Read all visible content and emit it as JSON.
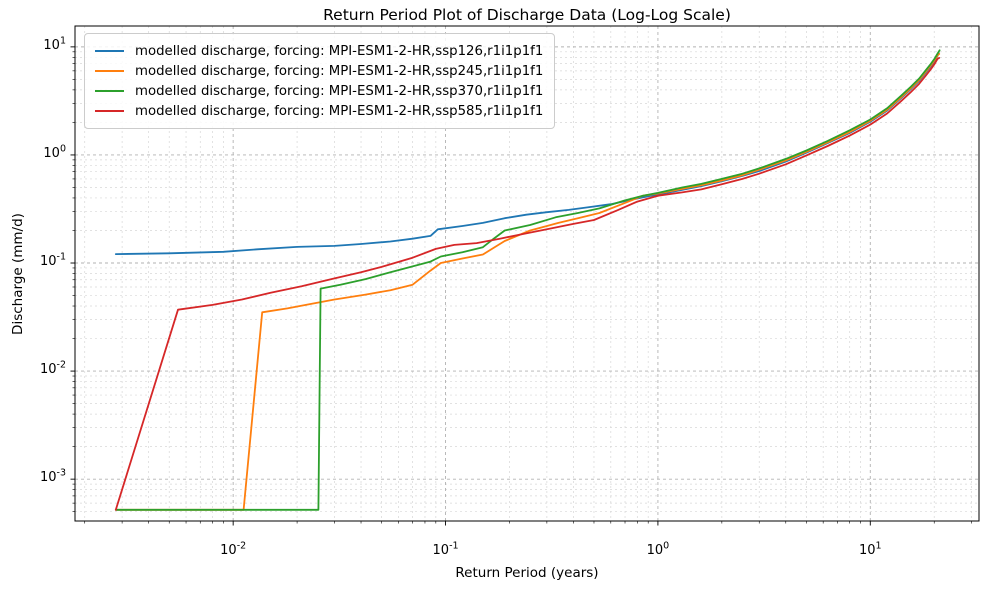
{
  "figure": {
    "title": "Return Period Plot of Discharge Data (Log-Log Scale)",
    "xlabel": "Return Period (years)",
    "ylabel": "Discharge (mm/d)"
  },
  "chart_data": {
    "type": "line",
    "title": "Return Period Plot of Discharge Data (Log-Log Scale)",
    "xlabel": "Return Period (years)",
    "ylabel": "Discharge (mm/d)",
    "x_scale": "log",
    "y_scale": "log",
    "xlim": [
      0.0018,
      32.5
    ],
    "ylim": [
      0.00041,
      15.6
    ],
    "x_tick_exponents": [
      -2,
      -1,
      0,
      1
    ],
    "y_tick_exponents": [
      1,
      0,
      -1,
      -2,
      -3
    ],
    "grid": {
      "major": true,
      "minor": true,
      "linestyle": "dashed"
    },
    "legend_position": "upper left",
    "series": [
      {
        "name": "modelled discharge, forcing: MPI-ESM1-2-HR,ssp126,r1i1p1f1",
        "color": "#1f77b4",
        "points": [
          [
            0.0028,
            0.121
          ],
          [
            0.005,
            0.123
          ],
          [
            0.009,
            0.127
          ],
          [
            0.013,
            0.134
          ],
          [
            0.02,
            0.141
          ],
          [
            0.03,
            0.144
          ],
          [
            0.04,
            0.15
          ],
          [
            0.055,
            0.158
          ],
          [
            0.07,
            0.168
          ],
          [
            0.085,
            0.178
          ],
          [
            0.092,
            0.205
          ],
          [
            0.12,
            0.22
          ],
          [
            0.15,
            0.235
          ],
          [
            0.19,
            0.26
          ],
          [
            0.24,
            0.28
          ],
          [
            0.3,
            0.295
          ],
          [
            0.38,
            0.31
          ],
          [
            0.48,
            0.33
          ],
          [
            0.6,
            0.35
          ],
          [
            0.75,
            0.385
          ],
          [
            0.9,
            0.415
          ],
          [
            1.0,
            0.43
          ],
          [
            1.3,
            0.475
          ],
          [
            1.6,
            0.515
          ],
          [
            2.0,
            0.57
          ],
          [
            2.5,
            0.64
          ],
          [
            3.0,
            0.71
          ],
          [
            4.0,
            0.87
          ],
          [
            5.0,
            1.05
          ],
          [
            6.3,
            1.29
          ],
          [
            8.0,
            1.6
          ],
          [
            10,
            2.03
          ],
          [
            12,
            2.57
          ],
          [
            14,
            3.37
          ],
          [
            15.5,
            4.06
          ],
          [
            17,
            4.85
          ],
          [
            18.2,
            5.74
          ],
          [
            19.3,
            6.63
          ],
          [
            20.1,
            7.43
          ],
          [
            20.7,
            8.22
          ],
          [
            21.0,
            8.8
          ]
        ]
      },
      {
        "name": "modelled discharge, forcing: MPI-ESM1-2-HR,ssp245,r1i1p1f1",
        "color": "#ff7f0e",
        "points": [
          [
            0.0028,
            0.00052
          ],
          [
            0.0112,
            0.00052
          ],
          [
            0.0137,
            0.035
          ],
          [
            0.018,
            0.038
          ],
          [
            0.022,
            0.041
          ],
          [
            0.03,
            0.046
          ],
          [
            0.042,
            0.051
          ],
          [
            0.055,
            0.056
          ],
          [
            0.07,
            0.063
          ],
          [
            0.085,
            0.085
          ],
          [
            0.095,
            0.1
          ],
          [
            0.12,
            0.11
          ],
          [
            0.15,
            0.12
          ],
          [
            0.19,
            0.16
          ],
          [
            0.25,
            0.2
          ],
          [
            0.3,
            0.22
          ],
          [
            0.34,
            0.235
          ],
          [
            0.42,
            0.26
          ],
          [
            0.53,
            0.29
          ],
          [
            0.7,
            0.36
          ],
          [
            0.85,
            0.42
          ],
          [
            1.0,
            0.44
          ],
          [
            1.3,
            0.485
          ],
          [
            1.6,
            0.525
          ],
          [
            2.0,
            0.58
          ],
          [
            2.5,
            0.65
          ],
          [
            3.0,
            0.73
          ],
          [
            4.0,
            0.89
          ],
          [
            5.0,
            1.07
          ],
          [
            6.3,
            1.31
          ],
          [
            8.0,
            1.63
          ],
          [
            10,
            2.07
          ],
          [
            12,
            2.62
          ],
          [
            14,
            3.43
          ],
          [
            15.5,
            4.14
          ],
          [
            17,
            4.95
          ],
          [
            18.2,
            5.86
          ],
          [
            19.3,
            6.77
          ],
          [
            20.1,
            7.58
          ],
          [
            20.7,
            8.3
          ],
          [
            21.1,
            8.6
          ]
        ]
      },
      {
        "name": "modelled discharge, forcing: MPI-ESM1-2-HR,ssp370,r1i1p1f1",
        "color": "#2ca02c",
        "points": [
          [
            0.0028,
            0.00052
          ],
          [
            0.0252,
            0.00052
          ],
          [
            0.0258,
            0.058
          ],
          [
            0.032,
            0.063
          ],
          [
            0.042,
            0.071
          ],
          [
            0.055,
            0.082
          ],
          [
            0.07,
            0.093
          ],
          [
            0.085,
            0.103
          ],
          [
            0.095,
            0.115
          ],
          [
            0.12,
            0.126
          ],
          [
            0.15,
            0.14
          ],
          [
            0.17,
            0.17
          ],
          [
            0.19,
            0.2
          ],
          [
            0.25,
            0.225
          ],
          [
            0.33,
            0.265
          ],
          [
            0.42,
            0.29
          ],
          [
            0.53,
            0.32
          ],
          [
            0.7,
            0.38
          ],
          [
            0.85,
            0.42
          ],
          [
            1.0,
            0.445
          ],
          [
            1.3,
            0.5
          ],
          [
            1.6,
            0.54
          ],
          [
            2.0,
            0.6
          ],
          [
            2.5,
            0.67
          ],
          [
            3.0,
            0.75
          ],
          [
            4.0,
            0.92
          ],
          [
            5.0,
            1.1
          ],
          [
            6.3,
            1.35
          ],
          [
            8.0,
            1.69
          ],
          [
            10,
            2.13
          ],
          [
            12,
            2.7
          ],
          [
            14,
            3.54
          ],
          [
            15.5,
            4.26
          ],
          [
            17,
            5.1
          ],
          [
            18.2,
            6.03
          ],
          [
            19.3,
            6.97
          ],
          [
            20.1,
            7.8
          ],
          [
            20.7,
            8.63
          ],
          [
            21.2,
            9.3
          ]
        ]
      },
      {
        "name": "modelled discharge, forcing: MPI-ESM1-2-HR,ssp585,r1i1p1f1",
        "color": "#d62728",
        "points": [
          [
            0.0028,
            0.00052
          ],
          [
            0.0055,
            0.037
          ],
          [
            0.008,
            0.041
          ],
          [
            0.011,
            0.046
          ],
          [
            0.015,
            0.053
          ],
          [
            0.021,
            0.061
          ],
          [
            0.03,
            0.072
          ],
          [
            0.04,
            0.082
          ],
          [
            0.05,
            0.092
          ],
          [
            0.07,
            0.112
          ],
          [
            0.09,
            0.135
          ],
          [
            0.11,
            0.147
          ],
          [
            0.14,
            0.153
          ],
          [
            0.18,
            0.168
          ],
          [
            0.23,
            0.185
          ],
          [
            0.3,
            0.205
          ],
          [
            0.4,
            0.23
          ],
          [
            0.5,
            0.25
          ],
          [
            0.65,
            0.31
          ],
          [
            0.8,
            0.37
          ],
          [
            1.0,
            0.42
          ],
          [
            1.3,
            0.45
          ],
          [
            1.6,
            0.48
          ],
          [
            2.0,
            0.535
          ],
          [
            2.5,
            0.6
          ],
          [
            3.0,
            0.67
          ],
          [
            4.0,
            0.82
          ],
          [
            5.0,
            0.99
          ],
          [
            6.3,
            1.21
          ],
          [
            8.0,
            1.51
          ],
          [
            10,
            1.91
          ],
          [
            12,
            2.42
          ],
          [
            14,
            3.16
          ],
          [
            15.5,
            3.81
          ],
          [
            17,
            4.56
          ],
          [
            18.2,
            5.39
          ],
          [
            19.3,
            6.23
          ],
          [
            20.1,
            6.98
          ],
          [
            20.7,
            7.72
          ],
          [
            21.1,
            7.9
          ]
        ]
      }
    ]
  }
}
